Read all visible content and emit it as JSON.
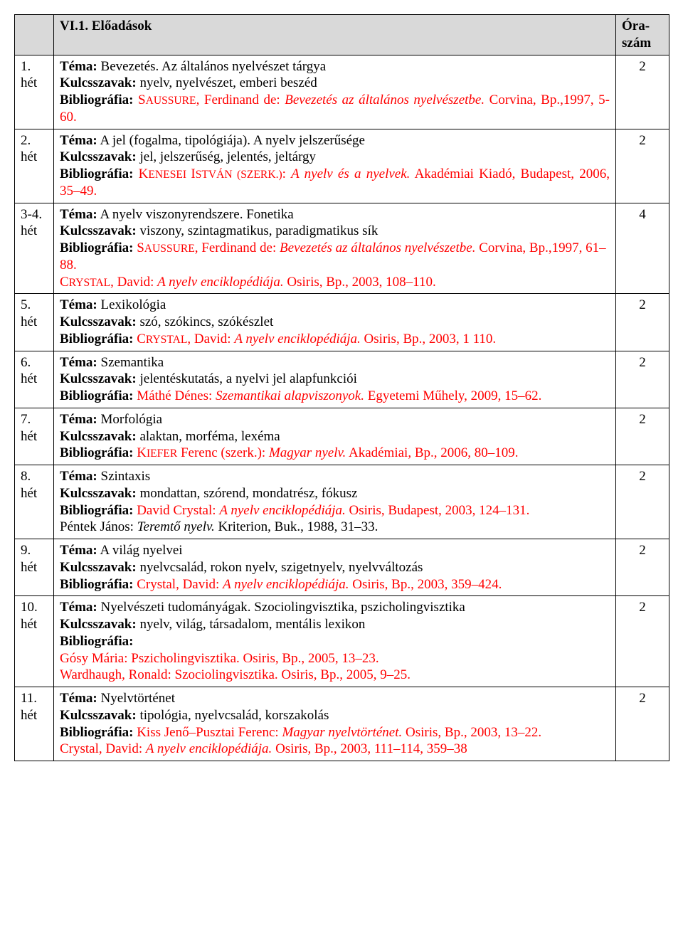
{
  "header": {
    "col1_blank": "",
    "title": "VI.1. Előadások",
    "hours_label_line1": "Óra-",
    "hours_label_line2": "szám"
  },
  "rows": [
    {
      "week_num": "1.",
      "week_unit": "hét",
      "tema_label": "Téma:",
      "tema_text_plain": " Bevezetés. Az általános nyelvészet tárgya",
      "kulcs_label": "Kulcsszavak:",
      "kulcs_text": " nyelv, nyelvészet, emberi beszéd",
      "bib_label": "Bibliográfia:",
      "bib_lead_black": " ",
      "bib_red_1": "S",
      "bib_red_sc1": "AUSSURE",
      "bib_red_2": ", Ferdinand de: ",
      "bib_red_it": "Bevezetés az általános nyelvészetbe.",
      "bib_red_3": " Corvina, Bp.,1997, 5-60.",
      "justify": true,
      "hours": "2"
    },
    {
      "week_num": "2.",
      "week_unit": "hét",
      "tema_label": "Téma:",
      "tema_text_plain": "   A jel (fogalma, tipológiája). A nyelv jelszerűsége",
      "kulcs_label": "Kulcsszavak:",
      "kulcs_text": " jel, jelszerűség, jelentés, jeltárgy",
      "bib_label": "Bibliográfia:",
      "bib_lead_black": " ",
      "bib_red_1": "K",
      "bib_red_sc1": "ENESEI ",
      "bib_red_2a": "I",
      "bib_red_sc2": "STVÁN (SZERK.)",
      "bib_red_2": ": ",
      "bib_red_it": "A nyelv és a nyelvek.",
      "bib_red_3": " Akadémiai Kiadó, Budapest, 2006, 35–49.",
      "justify": true,
      "hours": "2"
    },
    {
      "week_num": "3-4.",
      "week_unit": "hét",
      "tema_label": "Téma:",
      "tema_text_plain": " A nyelv viszonyrendszere. Fonetika",
      "kulcs_label": "Kulcsszavak:",
      "kulcs_text": " viszony, szintagmatikus, paradigmatikus sík",
      "bib_label": "Bibliográfia:",
      "bib_lead_black": " ",
      "bib_red_1": "S",
      "bib_red_sc1": "AUSSURE",
      "bib_red_2": ", Ferdinand de: ",
      "bib_red_it": "Bevezetés az általános nyelvészetbe.",
      "bib_red_3": " Corvina, Bp.,1997, 61–88.",
      "bib_extra_br": true,
      "bib_red_e1": "C",
      "bib_red_esc1": "RYSTAL",
      "bib_red_e2": ", David: ",
      "bib_red_eit": "A nyelv enciklopédiája.",
      "bib_red_e3": " Osiris, Bp., 2003, 108–110.",
      "hours": "4"
    },
    {
      "week_num": "5.",
      "week_unit": "hét",
      "tema_label": "Téma:",
      "tema_text_plain": " Lexikológia",
      "kulcs_label": "Kulcsszavak:",
      "kulcs_text": " szó, szókincs, szókészlet",
      "bib_label": "Bibliográfia:",
      "bib_lead_black": " ",
      "bib_red_1": "C",
      "bib_red_sc1": "RYSTAL",
      "bib_red_2": ", David: ",
      "bib_red_it": "A nyelv enciklopédiája.",
      "bib_red_3": " Osiris, Bp., 2003, 1 110.",
      "hours": "2"
    },
    {
      "week_num": "6.",
      "week_unit": "hét",
      "tema_label": "Téma:",
      "tema_text_plain": " Szemantika",
      "kulcs_label": "Kulcsszavak:",
      "kulcs_text": " jelentéskutatás, a nyelvi jel alapfunkciói",
      "bib_label": "Bibliográfia:",
      "bib_lead_black": " ",
      "bib_red_2": "Máthé Dénes: ",
      "bib_red_it": "Szemantikai alapviszonyok.",
      "bib_red_3": " Egyetemi Műhely, 2009, 15–62.",
      "justify": true,
      "hours": "2"
    },
    {
      "week_num": "7.",
      "week_unit": "hét",
      "tema_label": "Téma:",
      "tema_text_plain": " Morfológia",
      "kulcs_label": "Kulcsszavak:",
      "kulcs_text": " alaktan, morféma, lexéma",
      "bib_label": "Bibliográfia:",
      "bib_lead_black": " ",
      "bib_red_1": "K",
      "bib_red_sc1": "IEFER",
      "bib_red_2": " Ferenc (szerk.): ",
      "bib_red_it": "Magyar nyelv.",
      "bib_red_3": " Akadémiai,  Bp., 2006, 80–109.",
      "justify": true,
      "hours": "2"
    },
    {
      "week_num": "8.",
      "week_unit": "hét",
      "tema_label": "Téma:",
      "tema_text_plain": " Szintaxis",
      "kulcs_label": "Kulcsszavak:",
      "kulcs_text": " mondattan, szórend, mondatrész, fókusz",
      "bib_label": "Bibliográfia:",
      "bib_lead_black": " ",
      "bib_red_2": "David Crystal: ",
      "bib_red_it": "A nyelv enciklopédiája.",
      "bib_red_3": " Osiris, Budapest, 2003, 124–131.",
      "justify": true,
      "extra_black_line": "Péntek János: ",
      "extra_black_it": "Teremtő nyelv.",
      "extra_black_tail": " Kriterion, Buk., 1988, 31–33.",
      "hours": "2"
    },
    {
      "week_num": "9.",
      "week_unit": "hét",
      "tema_label": "Téma:",
      "tema_text_plain": " A világ nyelvei",
      "kulcs_label": "Kulcsszavak:",
      "kulcs_text": " nyelvcsalád, rokon nyelv, szigetnyelv, nyelvváltozás",
      "bib_label": "Bibliográfia:",
      "bib_lead_black": " ",
      "bib_red_2": "Crystal, David: ",
      "bib_red_it": "A nyelv enciklopédiája.",
      "bib_red_3": " Osiris, Bp., 2003, 359–424.",
      "hours": "2"
    },
    {
      "week_num": "10.",
      "week_unit": "hét",
      "tema_label": "Téma:",
      "tema_text_plain": " Nyelvészeti tudományágak. Szociolingvisztika, pszicholingvisztika",
      "kulcs_label": "Kulcsszavak:",
      "kulcs_text": " nyelv, világ, társadalom, mentális lexikon",
      "bib_label": "Bibliográfia:",
      "bib_label_alone": true,
      "bib_red_lines": [
        "Gósy Mária: Pszicholingvisztika. Osiris, Bp., 2005, 13–23.",
        "Wardhaugh, Ronald: Szociolingvisztika. Osiris, Bp., 2005, 9–25."
      ],
      "hours": "2"
    },
    {
      "week_num": "11.",
      "week_unit": "hét",
      "tema_label": "Téma:",
      "tema_text_plain": " Nyelvtörténet",
      "kulcs_label": "Kulcsszavak:",
      "kulcs_text": " tipológia, nyelvcsalád, korszakolás",
      "bib_label": "Bibliográfia:",
      "bib_lead_black": "  ",
      "bib_red_2": "Kiss Jenő–Pusztai Ferenc: ",
      "bib_red_it": "Magyar nyelvtörténet.",
      "bib_red_3": " Osiris, Bp., 2003, 13–22.",
      "justify": true,
      "bib_extra_br": true,
      "bib_red_e2": "Crystal, David: ",
      "bib_red_eit": "A nyelv enciklopédiája.",
      "bib_red_e3": " Osiris, Bp., 2003, 111–114, 359–38",
      "hours": "2"
    }
  ]
}
